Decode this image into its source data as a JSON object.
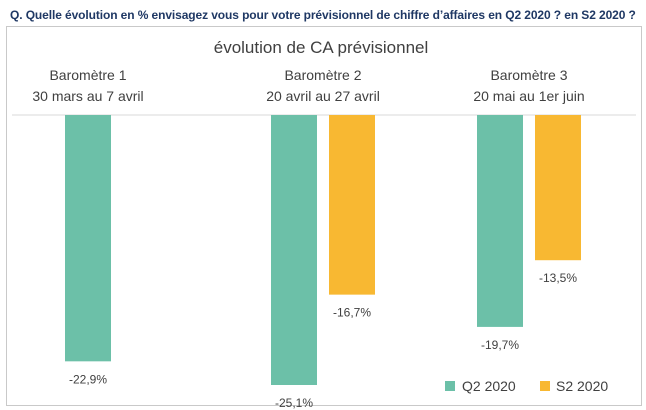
{
  "question": "Q. Quelle évolution en % envisagez vous pour votre prévisionnel de chiffre d’affaires en Q2 2020 ? en S2 2020 ?",
  "chart_data": {
    "type": "bar",
    "title": "évolution de CA prévisionnel",
    "categories": [
      {
        "name": "Baromètre 1",
        "period": "30 mars au 7 avril"
      },
      {
        "name": "Baromètre 2",
        "period": "20 avril au 27 avril"
      },
      {
        "name": "Baromètre 3",
        "period": "20 mai au 1er juin"
      }
    ],
    "series": [
      {
        "name": "Q2 2020",
        "color": "#6cc0a8",
        "values": [
          -22.9,
          -25.1,
          -19.7
        ],
        "labels": [
          "-22,9%",
          "-25,1%",
          "-19,7%"
        ]
      },
      {
        "name": "S2 2020",
        "color": "#f8b832",
        "values": [
          null,
          -16.7,
          -13.5
        ],
        "labels": [
          "",
          "-16,7%",
          "-13,5%"
        ]
      }
    ],
    "ylim": [
      -27,
      0
    ],
    "legend": "bottom-right",
    "grid": false
  }
}
